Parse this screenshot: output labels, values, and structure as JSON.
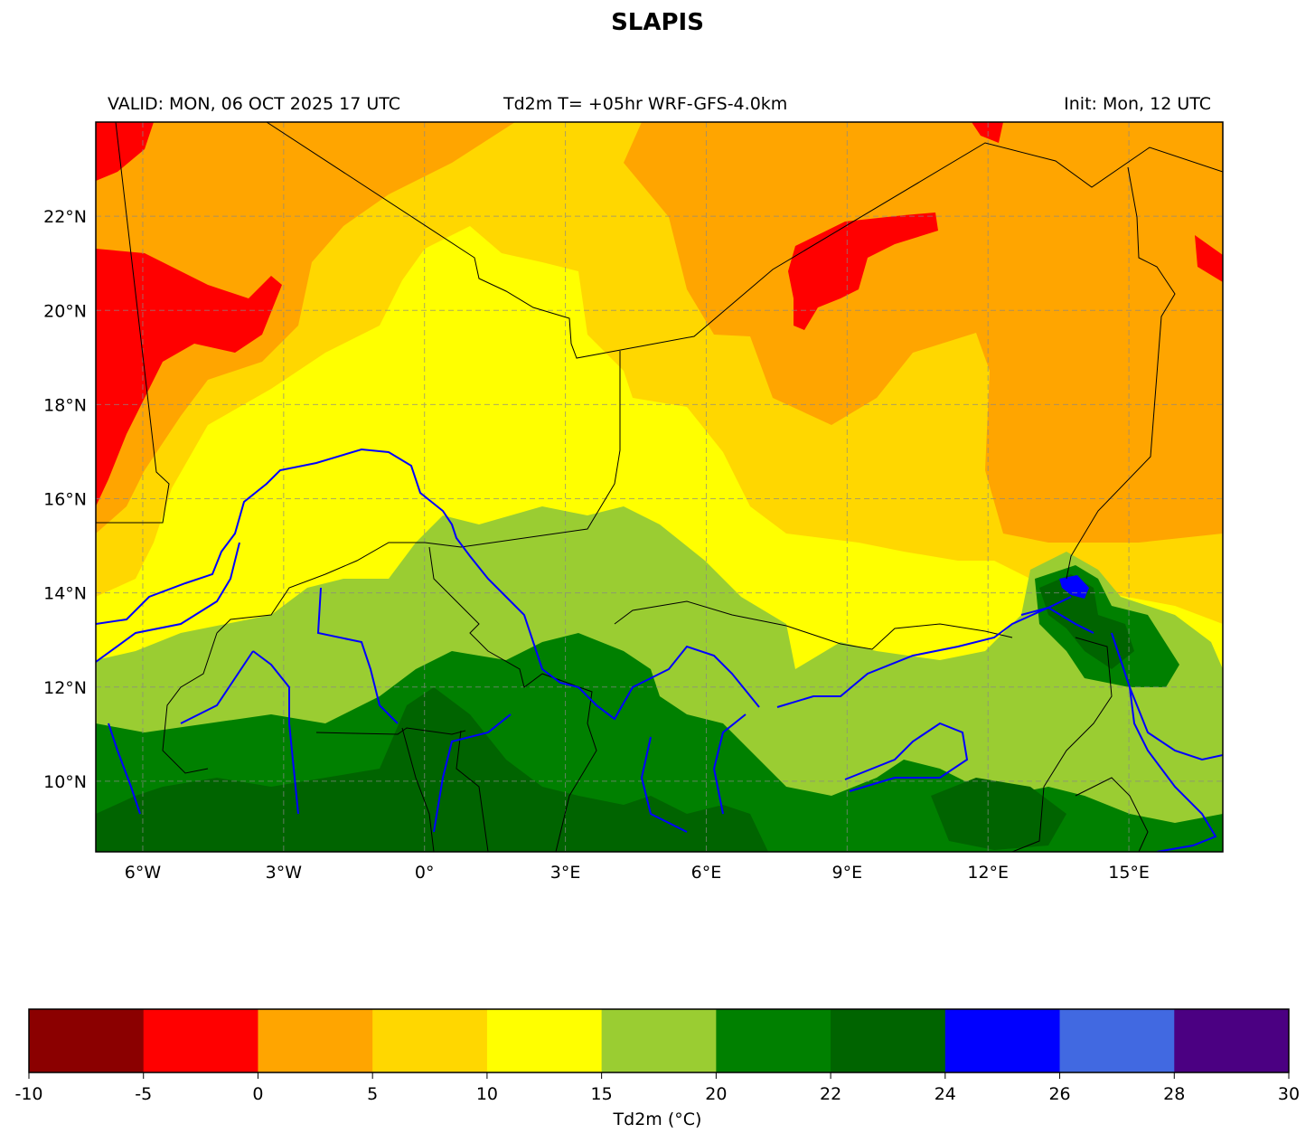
{
  "title": "SLAPIS",
  "subtitle_left": "VALID: MON, 06 OCT 2025 17 UTC",
  "subtitle_center": "Td2m T= +05hr WRF-GFS-4.0km",
  "subtitle_right": "Init: Mon, 12 UTC",
  "map": {
    "lon_range": [
      -7,
      17
    ],
    "lat_range": [
      8.5,
      24
    ],
    "lat_ticks": [
      "22°N",
      "20°N",
      "18°N",
      "16°N",
      "14°N",
      "12°N",
      "10°N"
    ],
    "lon_ticks": [
      "6°W",
      "3°W",
      "0°",
      "3°E",
      "6°E",
      "9°E",
      "12°E",
      "15°E"
    ],
    "grid": true
  },
  "colorbar": {
    "label": "Td2m (°C)",
    "ticks": [
      "-10",
      "-5",
      "0",
      "5",
      "10",
      "15",
      "20",
      "22",
      "24",
      "26",
      "28",
      "30"
    ],
    "colors": [
      "#8b0000",
      "#ff0000",
      "#ffa500",
      "#ffd700",
      "#ffff00",
      "#9acd32",
      "#008000",
      "#006400",
      "#0000ff",
      "#4169e1",
      "#4b0082"
    ]
  },
  "colors": {
    "border": "#000000",
    "river": "#0000ff",
    "grid": "#888888"
  }
}
